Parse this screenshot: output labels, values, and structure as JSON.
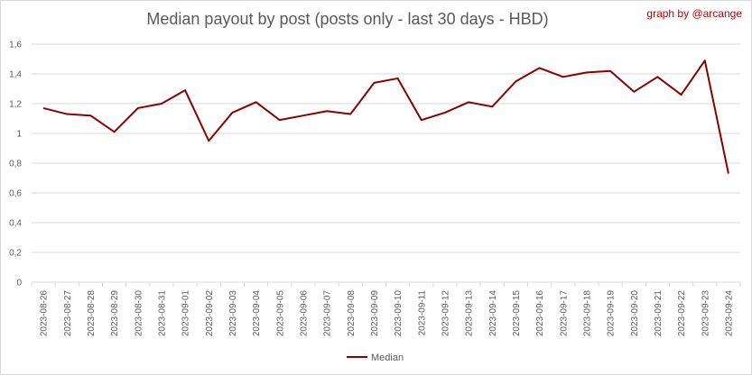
{
  "header": {
    "title": "Median payout by post (posts only - last 30 days - HBD)",
    "credit": "graph by @arcange"
  },
  "chart_data": {
    "type": "line",
    "title": "Median payout by post (posts only - last 30 days - HBD)",
    "xlabel": "",
    "ylabel": "",
    "ylim": [
      0,
      1.6
    ],
    "y_ticks": [
      "0",
      "0,2",
      "0,4",
      "0,6",
      "0,8",
      "1",
      "1,2",
      "1,4",
      "1,6"
    ],
    "y_tick_values": [
      0,
      0.2,
      0.4,
      0.6,
      0.8,
      1.0,
      1.2,
      1.4,
      1.6
    ],
    "grid": true,
    "legend_position": "bottom",
    "categories": [
      "2023-08-26",
      "2023-08-27",
      "2023-08-28",
      "2023-08-29",
      "2023-08-30",
      "2023-08-31",
      "2023-09-01",
      "2023-09-02",
      "2023-09-03",
      "2023-09-04",
      "2023-09-05",
      "2023-09-06",
      "2023-09-07",
      "2023-09-08",
      "2023-09-09",
      "2023-09-10",
      "2023-09-11",
      "2023-09-12",
      "2023-09-13",
      "2023-09-14",
      "2023-09-15",
      "2023-09-16",
      "2023-09-17",
      "2023-09-18",
      "2023-09-19",
      "2023-09-20",
      "2023-09-21",
      "2023-09-22",
      "2023-09-23",
      "2023-09-24"
    ],
    "series": [
      {
        "name": "Median",
        "color": "#8b0000",
        "values": [
          1.17,
          1.13,
          1.12,
          1.01,
          1.17,
          1.2,
          1.29,
          0.95,
          1.14,
          1.21,
          1.09,
          1.12,
          1.15,
          1.13,
          1.34,
          1.37,
          1.09,
          1.14,
          1.21,
          1.18,
          1.35,
          1.44,
          1.38,
          1.41,
          1.42,
          1.28,
          1.38,
          1.26,
          1.49,
          0.73
        ]
      }
    ]
  }
}
